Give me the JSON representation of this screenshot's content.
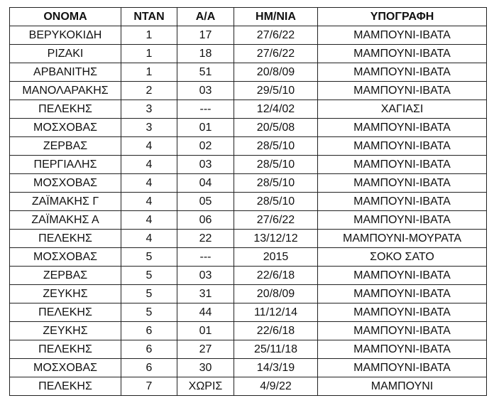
{
  "table": {
    "headers": [
      "ΟΝΟΜΑ",
      "ΝΤΑΝ",
      "Α/Α",
      "ΗΜ/ΝΙΑ",
      "ΥΠΟΓΡΑΦΗ"
    ],
    "rows": [
      [
        "ΒΕΡΥΚΟΚΙΔΗ",
        "1",
        "17",
        "27/6/22",
        "ΜΑΜΠΟΥΝΙ-ΙΒΑΤΑ"
      ],
      [
        "ΡΙΖΑΚΙ",
        "1",
        "18",
        "27/6/22",
        "ΜΑΜΠΟΥΝΙ-ΙΒΑΤΑ"
      ],
      [
        "ΑΡΒΑΝΙΤΗΣ",
        "1",
        "51",
        "20/8/09",
        "ΜΑΜΠΟΥΝΙ-ΙΒΑΤΑ"
      ],
      [
        "ΜΑΝΟΛΑΡΑΚΗΣ",
        "2",
        "03",
        "29/5/10",
        "ΜΑΜΠΟΥΝΙ-ΙΒΑΤΑ"
      ],
      [
        "ΠΕΛΕΚΗΣ",
        "3",
        "---",
        "12/4/02",
        "ΧΑΓΙΑΣΙ"
      ],
      [
        "ΜΟΣΧΟΒΑΣ",
        "3",
        "01",
        "20/5/08",
        "ΜΑΜΠΟΥΝΙ-ΙΒΑΤΑ"
      ],
      [
        "ΖΕΡΒΑΣ",
        "4",
        "02",
        "28/5/10",
        "ΜΑΜΠΟΥΝΙ-ΙΒΑΤΑ"
      ],
      [
        "ΠΕΡΓΙΑΛΗΣ",
        "4",
        "03",
        "28/5/10",
        "ΜΑΜΠΟΥΝΙ-ΙΒΑΤΑ"
      ],
      [
        "ΜΟΣΧΟΒΑΣ",
        "4",
        "04",
        "28/5/10",
        "ΜΑΜΠΟΥΝΙ-ΙΒΑΤΑ"
      ],
      [
        "ΖΑΪΜΑΚΗΣ Γ",
        "4",
        "05",
        "28/5/10",
        "ΜΑΜΠΟΥΝΙ-ΙΒΑΤΑ"
      ],
      [
        "ΖΑΪΜΑΚΗΣ Α",
        "4",
        "06",
        "27/6/22",
        "ΜΑΜΠΟΥΝΙ-ΙΒΑΤΑ"
      ],
      [
        "ΠΕΛΕΚΗΣ",
        "4",
        "22",
        "13/12/12",
        "ΜΑΜΠΟΥΝΙ-ΜΟΥΡΑΤΑ"
      ],
      [
        "ΜΟΣΧΟΒΑΣ",
        "5",
        "---",
        "2015",
        "ΣΟΚΟ ΣΑΤΟ"
      ],
      [
        "ΖΕΡΒΑΣ",
        "5",
        "03",
        "22/6/18",
        "ΜΑΜΠΟΥΝΙ-ΙΒΑΤΑ"
      ],
      [
        "ΖΕΥΚΗΣ",
        "5",
        "31",
        "20/8/09",
        "ΜΑΜΠΟΥΝΙ-ΙΒΑΤΑ"
      ],
      [
        "ΠΕΛΕΚΗΣ",
        "5",
        "44",
        "11/12/14",
        "ΜΑΜΠΟΥΝΙ-ΙΒΑΤΑ"
      ],
      [
        "ΖΕΥΚΗΣ",
        "6",
        "01",
        "22/6/18",
        "ΜΑΜΠΟΥΝΙ-ΙΒΑΤΑ"
      ],
      [
        "ΠΕΛΕΚΗΣ",
        "6",
        "27",
        "25/11/18",
        "ΜΑΜΠΟΥΝΙ-ΙΒΑΤΑ"
      ],
      [
        "ΜΟΣΧΟΒΑΣ",
        "6",
        "30",
        "14/3/19",
        "ΜΑΜΠΟΥΝΙ-ΙΒΑΤΑ"
      ],
      [
        "ΠΕΛΕΚΗΣ",
        "7",
        "ΧΩΡΙΣ",
        "4/9/22",
        "ΜΑΜΠΟΥΝΙ"
      ]
    ]
  }
}
